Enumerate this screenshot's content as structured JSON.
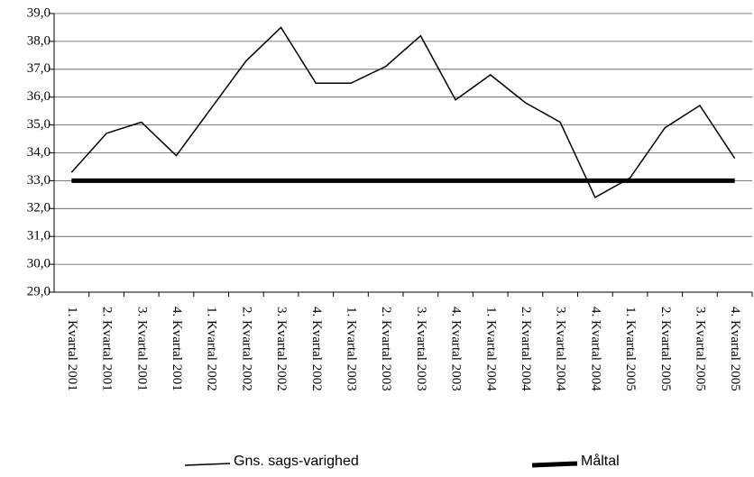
{
  "chart_data": {
    "type": "line",
    "categories": [
      "1. Kvartal 2001",
      "2. Kvartal 2001",
      "3. Kvartal 2001",
      "4. Kvartal 2001",
      "1. Kvartal 2002",
      "2. Kvartal 2002",
      "3. Kvartal 2002",
      "4. Kvartal 2002",
      "1. Kvartal 2003",
      "2. Kvartal 2003",
      "3. Kvartal 2003",
      "4. Kvartal 2003",
      "1. Kvartal 2004",
      "2. Kvartal 2004",
      "3. Kvartal 2004",
      "4. Kvartal 2004",
      "1. Kvartal 2005",
      "2. Kvartal 2005",
      "3. Kvartal 2005",
      "4. Kvartal 2005"
    ],
    "series": [
      {
        "name": "Gns. sags-varighed",
        "color": "#000000",
        "width": 1.5,
        "values": [
          33.3,
          34.7,
          35.1,
          33.9,
          35.6,
          37.3,
          38.5,
          36.5,
          36.5,
          37.1,
          38.2,
          35.9,
          36.8,
          35.8,
          35.1,
          32.4,
          33.1,
          34.9,
          35.7,
          33.8
        ]
      },
      {
        "name": "Måltal",
        "color": "#000000",
        "width": 5,
        "values": [
          33.0,
          33.0,
          33.0,
          33.0,
          33.0,
          33.0,
          33.0,
          33.0,
          33.0,
          33.0,
          33.0,
          33.0,
          33.0,
          33.0,
          33.0,
          33.0,
          33.0,
          33.0,
          33.0,
          33.0
        ]
      }
    ],
    "ylim": [
      29,
      39
    ],
    "yticks": [
      {
        "value": 29,
        "label": "29,0"
      },
      {
        "value": 30,
        "label": "30,0"
      },
      {
        "value": 31,
        "label": "31,0"
      },
      {
        "value": 32,
        "label": "32,0"
      },
      {
        "value": 33,
        "label": "33,0"
      },
      {
        "value": 34,
        "label": "34,0"
      },
      {
        "value": 35,
        "label": "35,0"
      },
      {
        "value": 36,
        "label": "36,0"
      },
      {
        "value": 37,
        "label": "37,0"
      },
      {
        "value": 38,
        "label": "38,0"
      },
      {
        "value": 39,
        "label": "39,0"
      }
    ],
    "grid": true
  }
}
